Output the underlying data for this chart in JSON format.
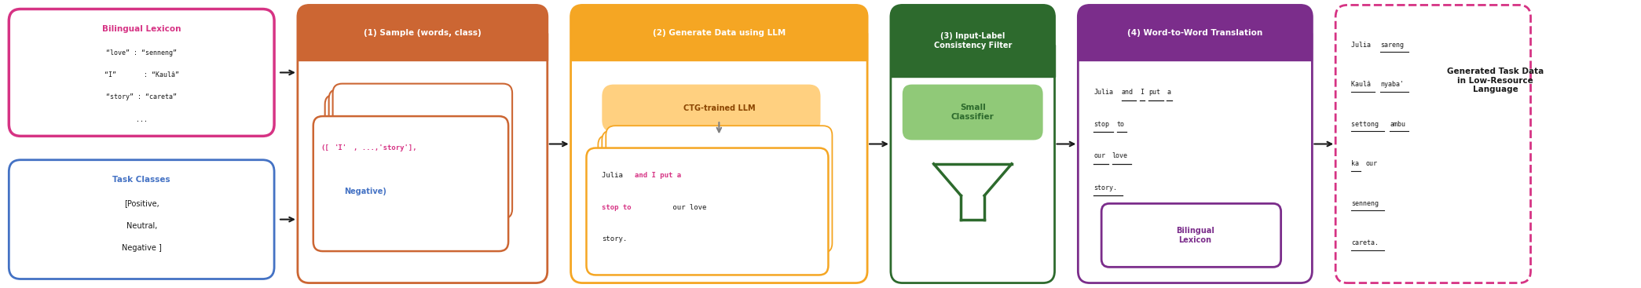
{
  "fig_width": 20.89,
  "fig_height": 3.67,
  "bg_color": "#ffffff",
  "colors": {
    "pink_border": "#d63384",
    "pink_title": "#d63384",
    "blue_border": "#4472c4",
    "blue_title": "#4472c4",
    "orange_dark_bg": "#cc6633",
    "orange_medium_bg": "#f5a623",
    "orange_light_fill": "#ffd080",
    "green_dark_bg": "#2d6a2d",
    "green_light_fill": "#90c978",
    "purple_border": "#7b2d8b",
    "pink_text": "#d63384",
    "blue_text": "#4472c4",
    "dark_orange_text": "#8B4500",
    "gray_arrow": "#808080",
    "dashed_border": "#d63384"
  },
  "box1_title": "Bilingual Lexicon",
  "box1_lines": [
    "“love” : “senneng”",
    "“I”       : “Kaulâ”",
    "“story” : “careta”",
    "..."
  ],
  "box2_title": "Task Classes",
  "box2_lines": [
    "[Positive,",
    "Neutral,",
    "Negative ]"
  ],
  "step1_title": "(1) Sample (words, class)",
  "step2_title": "(2) Generate Data using LLM",
  "step2_ctg": "CTG-trained LLM",
  "step3_title": "(3) Input-Label\nConsistency Filter",
  "step3_content": "Small\nClassifier",
  "step4_title": "(4) Word-to-Word Translation",
  "step4_bilingual_title": "Bilingual\nLexicon",
  "final_title": "Generated Task Data\nin Low-Resource\nLanguage"
}
